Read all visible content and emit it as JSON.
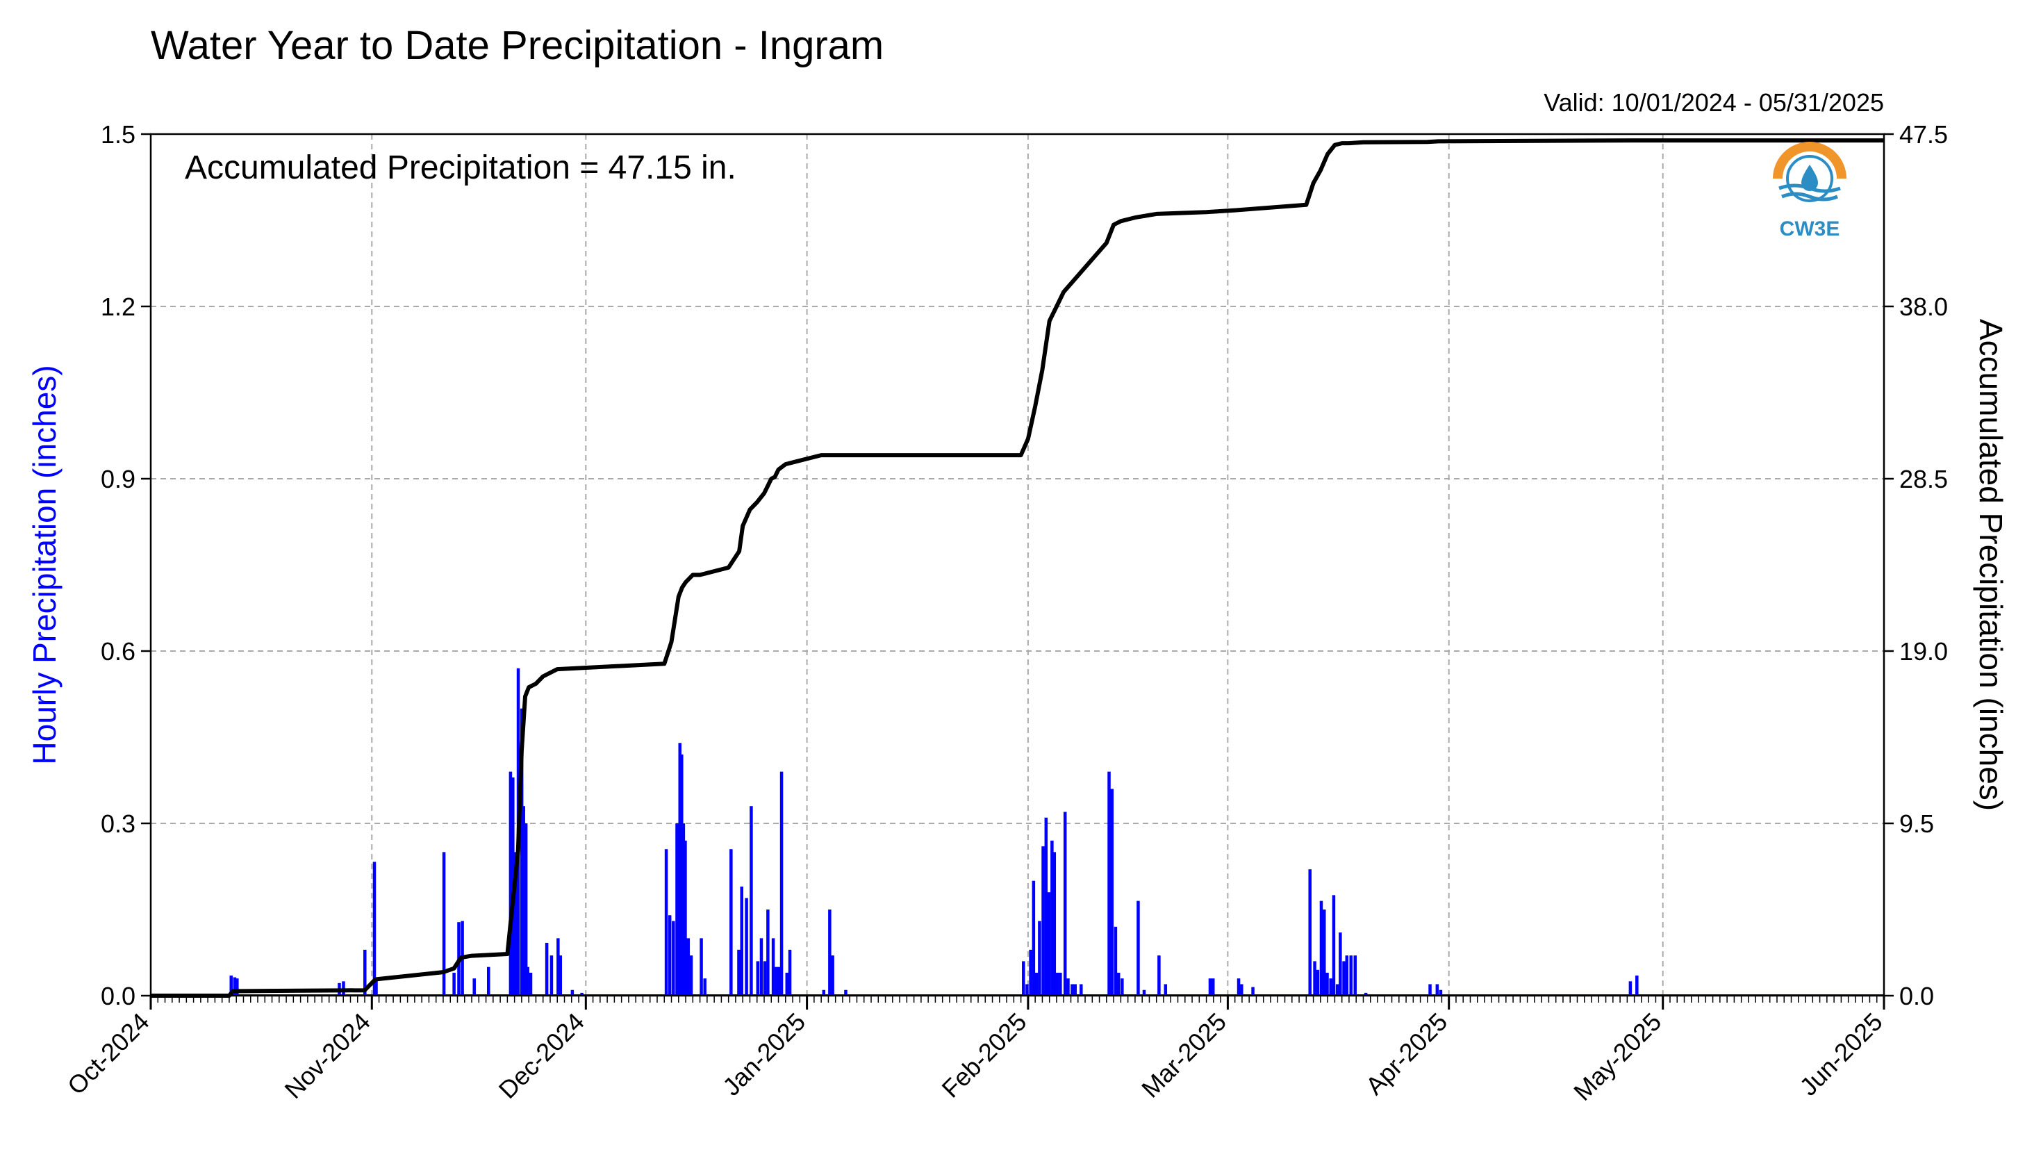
{
  "title": "Water Year to Date Precipitation - Ingram",
  "valid": "Valid: 10/01/2024 - 05/31/2025",
  "logo_text": "CW3E",
  "colors": {
    "hourly": "#0000ff",
    "accumulated": "#000000",
    "grid": "#aaaaaa",
    "logo_orange": "#f0952a",
    "logo_blue": "#2c8dc4"
  },
  "chart_data": {
    "type": "bar+line",
    "annotation": "Accumulated Precipitation = 47.15 in.",
    "grid": "dashed",
    "x_range": [
      "2024-10-01",
      "2025-06-01"
    ],
    "x_tick_dates": [
      "2024-10-01",
      "2024-11-01",
      "2024-12-01",
      "2025-01-01",
      "2025-02-01",
      "2025-03-01",
      "2025-04-01",
      "2025-05-01",
      "2025-06-01"
    ],
    "x_tick_labels": [
      "Oct-2024",
      "Nov-2024",
      "Dec-2024",
      "Jan-2025",
      "Feb-2025",
      "Mar-2025",
      "Apr-2025",
      "May-2025",
      "Jun-2025"
    ],
    "y_left": {
      "label": "Hourly Precipitation (inches)",
      "range": [
        0,
        1.5
      ],
      "ticks": [
        "0.0",
        "0.3",
        "0.6",
        "0.9",
        "1.2",
        "1.5"
      ]
    },
    "y_right": {
      "label": "Accumulated Precipitation (inches)",
      "range": [
        0,
        47.5
      ],
      "ticks": [
        "0.0",
        "9.5",
        "19.0",
        "28.5",
        "38.0",
        "47.5"
      ]
    },
    "series": [
      {
        "kind": "bar",
        "axis": "left",
        "x_dates": [
          "2024-10-12T06",
          "2024-10-12T18",
          "2024-10-13T02",
          "2024-10-27T10",
          "2024-10-28T00",
          "2024-10-31T00",
          "2024-11-01T08",
          "2024-11-01T14",
          "2024-11-11T02",
          "2024-11-12T12",
          "2024-11-13T04",
          "2024-11-13T16",
          "2024-11-15T08",
          "2024-11-17T08",
          "2024-11-20T10",
          "2024-11-20T18",
          "2024-11-21T04",
          "2024-11-21T12",
          "2024-11-22T00",
          "2024-11-22T06",
          "2024-11-22T14",
          "2024-11-22T20",
          "2024-11-23T06",
          "2024-11-25T12",
          "2024-11-26T04",
          "2024-11-27T02",
          "2024-11-27T10",
          "2024-11-29T02",
          "2024-11-30T10",
          "2024-12-12T06",
          "2024-12-12T18",
          "2024-12-13T06",
          "2024-12-13T18",
          "2024-12-14T04",
          "2024-12-14T10",
          "2024-12-14T16",
          "2024-12-14T22",
          "2024-12-15T08",
          "2024-12-15T18",
          "2024-12-17T04",
          "2024-12-17T16",
          "2024-12-21T08",
          "2024-12-22T10",
          "2024-12-22T20",
          "2024-12-23T12",
          "2024-12-24T04",
          "2024-12-25T02",
          "2024-12-25T14",
          "2024-12-26T02",
          "2024-12-26T12",
          "2024-12-27T06",
          "2024-12-27T16",
          "2024-12-28T00",
          "2024-12-28T10",
          "2024-12-29T04",
          "2024-12-29T14",
          "2025-01-03T08",
          "2025-01-04T04",
          "2025-01-04T14",
          "2025-01-06T10",
          "2025-01-31T08",
          "2025-01-31T20",
          "2025-02-01T08",
          "2025-02-01T18",
          "2025-02-02T04",
          "2025-02-02T14",
          "2025-02-03T02",
          "2025-02-03T12",
          "2025-02-03T22",
          "2025-02-04T08",
          "2025-02-04T16",
          "2025-02-05T02",
          "2025-02-05T12",
          "2025-02-06T04",
          "2025-02-06T14",
          "2025-02-07T04",
          "2025-02-07T14",
          "2025-02-08T10",
          "2025-02-12T08",
          "2025-02-12T18",
          "2025-02-13T06",
          "2025-02-13T16",
          "2025-02-14T04",
          "2025-02-16T10",
          "2025-02-17T06",
          "2025-02-19T08",
          "2025-02-20T06",
          "2025-02-26T12",
          "2025-02-26T22",
          "2025-03-02T12",
          "2025-03-02T22",
          "2025-03-04T12",
          "2025-03-12T12",
          "2025-03-13T04",
          "2025-03-13T14",
          "2025-03-14T02",
          "2025-03-14T12",
          "2025-03-14T22",
          "2025-03-15T10",
          "2025-03-15T20",
          "2025-03-16T08",
          "2025-03-16T18",
          "2025-03-17T06",
          "2025-03-17T16",
          "2025-03-18T06",
          "2025-03-18T20",
          "2025-03-20T08",
          "2025-03-29T08",
          "2025-03-30T08",
          "2025-03-30T20",
          "2025-04-26T10",
          "2025-04-27T08"
        ],
        "values": [
          0.035,
          0.032,
          0.03,
          0.022,
          0.025,
          0.08,
          0.233,
          0.03,
          0.25,
          0.04,
          0.128,
          0.13,
          0.03,
          0.05,
          0.39,
          0.38,
          0.25,
          0.57,
          0.5,
          0.33,
          0.3,
          0.05,
          0.04,
          0.092,
          0.07,
          0.1,
          0.07,
          0.01,
          0.005,
          0.255,
          0.14,
          0.13,
          0.3,
          0.44,
          0.42,
          0.3,
          0.27,
          0.1,
          0.07,
          0.1,
          0.03,
          0.255,
          0.08,
          0.19,
          0.17,
          0.33,
          0.06,
          0.1,
          0.06,
          0.15,
          0.1,
          0.05,
          0.05,
          0.39,
          0.04,
          0.08,
          0.01,
          0.15,
          0.07,
          0.01,
          0.06,
          0.02,
          0.08,
          0.2,
          0.04,
          0.13,
          0.26,
          0.31,
          0.18,
          0.27,
          0.25,
          0.04,
          0.04,
          0.32,
          0.03,
          0.02,
          0.02,
          0.02,
          0.39,
          0.36,
          0.12,
          0.04,
          0.03,
          0.165,
          0.01,
          0.07,
          0.02,
          0.03,
          0.03,
          0.03,
          0.02,
          0.015,
          0.22,
          0.06,
          0.045,
          0.165,
          0.15,
          0.04,
          0.03,
          0.175,
          0.02,
          0.11,
          0.06,
          0.07,
          0.07,
          0.07,
          0.005,
          0.02,
          0.02,
          0.01,
          0.025,
          0.035
        ]
      },
      {
        "kind": "step-line",
        "axis": "right",
        "x_dates": [
          "2024-10-01",
          "2024-10-12",
          "2024-10-12T12",
          "2024-10-31",
          "2024-11-01T12",
          "2024-11-11",
          "2024-11-12T12",
          "2024-11-13T12",
          "2024-11-15",
          "2024-11-20",
          "2024-11-21T12",
          "2024-11-22",
          "2024-11-22T12",
          "2024-11-23",
          "2024-11-24",
          "2024-11-25",
          "2024-11-27",
          "2024-12-12",
          "2024-12-13",
          "2024-12-14",
          "2024-12-14T12",
          "2024-12-15",
          "2024-12-16",
          "2024-12-17",
          "2024-12-21",
          "2024-12-22T12",
          "2024-12-23",
          "2024-12-24",
          "2024-12-25",
          "2024-12-26",
          "2024-12-27",
          "2024-12-27T12",
          "2024-12-28",
          "2024-12-29",
          "2025-01-03",
          "2025-01-31",
          "2025-02-01",
          "2025-02-02",
          "2025-02-03",
          "2025-02-04",
          "2025-02-05",
          "2025-02-06",
          "2025-02-12",
          "2025-02-13",
          "2025-02-14",
          "2025-02-16",
          "2025-02-19",
          "2025-02-26",
          "2025-03-02",
          "2025-03-12",
          "2025-03-13",
          "2025-03-14",
          "2025-03-15",
          "2025-03-16",
          "2025-03-17",
          "2025-03-18",
          "2025-03-20",
          "2025-03-29",
          "2025-03-30T12",
          "2025-04-27",
          "2025-06-01"
        ],
        "values": [
          0.0,
          0.0,
          0.25,
          0.3,
          0.9,
          1.3,
          1.5,
          2.1,
          2.2,
          2.3,
          8.0,
          13.5,
          16.5,
          17.0,
          17.2,
          17.6,
          18.0,
          18.3,
          19.5,
          22.0,
          22.5,
          22.8,
          23.2,
          23.2,
          23.6,
          24.5,
          25.9,
          26.8,
          27.2,
          27.7,
          28.5,
          28.6,
          29.0,
          29.3,
          29.8,
          29.8,
          30.7,
          32.5,
          34.5,
          37.2,
          38.0,
          38.8,
          41.5,
          42.5,
          42.7,
          42.9,
          43.1,
          43.2,
          43.3,
          43.6,
          44.8,
          45.5,
          46.4,
          46.9,
          47.0,
          47.0,
          47.05,
          47.07,
          47.1,
          47.15,
          47.15
        ]
      }
    ]
  }
}
